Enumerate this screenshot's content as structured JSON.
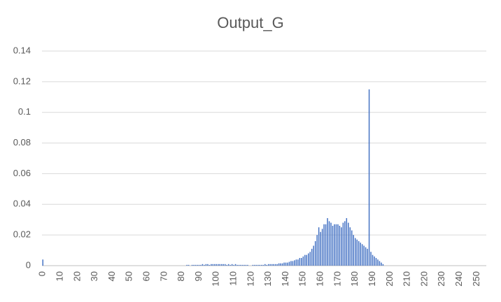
{
  "chart_data": {
    "type": "bar",
    "title": "Output_G",
    "categories": [
      "0",
      null,
      null,
      null,
      null,
      null,
      null,
      null,
      null,
      null,
      "10",
      null,
      null,
      null,
      null,
      null,
      null,
      null,
      null,
      null,
      "20",
      null,
      null,
      null,
      null,
      null,
      null,
      null,
      null,
      null,
      "30",
      null,
      null,
      null,
      null,
      null,
      null,
      null,
      null,
      null,
      "40",
      null,
      null,
      null,
      null,
      null,
      null,
      null,
      null,
      null,
      "50",
      null,
      null,
      null,
      null,
      null,
      null,
      null,
      null,
      null,
      "60",
      null,
      null,
      null,
      null,
      null,
      null,
      null,
      null,
      null,
      "70",
      null,
      null,
      null,
      null,
      null,
      null,
      null,
      null,
      null,
      "80",
      null,
      null,
      null,
      null,
      null,
      null,
      null,
      null,
      null,
      "90",
      null,
      null,
      null,
      null,
      null,
      null,
      null,
      null,
      null,
      "100",
      null,
      null,
      null,
      null,
      null,
      null,
      null,
      null,
      null,
      "110",
      null,
      null,
      null,
      null,
      null,
      null,
      null,
      null,
      null,
      "120",
      null,
      null,
      null,
      null,
      null,
      null,
      null,
      null,
      null,
      "130",
      null,
      null,
      null,
      null,
      null,
      null,
      null,
      null,
      null,
      "140",
      null,
      null,
      null,
      null,
      null,
      null,
      null,
      null,
      null,
      "150",
      null,
      null,
      null,
      null,
      null,
      null,
      null,
      null,
      null,
      "160",
      null,
      null,
      null,
      null,
      null,
      null,
      null,
      null,
      null,
      "170",
      null,
      null,
      null,
      null,
      null,
      null,
      null,
      null,
      null,
      "180",
      null,
      null,
      null,
      null,
      null,
      null,
      null,
      null,
      null,
      "190",
      null,
      null,
      null,
      null,
      null,
      null,
      null,
      null,
      null,
      "200",
      null,
      null,
      null,
      null,
      null,
      null,
      null,
      null,
      null,
      "210",
      null,
      null,
      null,
      null,
      null,
      null,
      null,
      null,
      null,
      "220",
      null,
      null,
      null,
      null,
      null,
      null,
      null,
      null,
      null,
      "230",
      null,
      null,
      null,
      null,
      null,
      null,
      null,
      null,
      null,
      "240",
      null,
      null,
      null,
      null,
      null,
      null,
      null,
      null,
      null,
      "250",
      null,
      null,
      null,
      null,
      null
    ],
    "values": [
      0.004,
      0,
      0,
      0,
      0,
      0,
      0,
      0,
      0,
      0,
      0,
      0,
      0,
      0,
      0,
      0,
      0,
      0,
      0,
      0,
      0,
      0,
      0,
      0,
      0,
      0,
      0,
      0,
      0,
      0,
      0,
      0,
      0,
      0,
      0,
      0,
      0,
      0,
      0,
      0,
      0,
      0,
      0,
      0,
      0,
      0,
      0,
      0,
      0,
      0,
      0,
      0,
      0,
      0,
      0,
      0,
      0,
      0,
      0,
      0,
      0,
      0,
      0,
      0,
      0,
      0,
      0,
      0,
      0,
      0,
      0,
      0,
      0,
      0,
      0,
      0,
      0,
      0,
      0,
      0,
      0,
      0,
      0,
      0.0005,
      0.0005,
      0,
      0.0005,
      0.0005,
      0.0005,
      0.0005,
      0.0005,
      0.0005,
      0.001,
      0.0005,
      0.001,
      0.001,
      0.0005,
      0.001,
      0.001,
      0.001,
      0.001,
      0.001,
      0.001,
      0.001,
      0.001,
      0.001,
      0.0005,
      0.001,
      0.0005,
      0.001,
      0.0005,
      0.001,
      0.0005,
      0.0005,
      0.0005,
      0.0005,
      0.0005,
      0.0005,
      0.0005,
      0,
      0,
      0.0005,
      0.0005,
      0.0005,
      0.0005,
      0.0005,
      0.0005,
      0.0005,
      0.001,
      0.0005,
      0.001,
      0.001,
      0.001,
      0.001,
      0.001,
      0.001,
      0.0015,
      0.0015,
      0.0015,
      0.002,
      0.002,
      0.002,
      0.0025,
      0.003,
      0.003,
      0.0035,
      0.004,
      0.004,
      0.005,
      0.005,
      0.006,
      0.007,
      0.007,
      0.008,
      0.009,
      0.011,
      0.013,
      0.016,
      0.02,
      0.025,
      0.022,
      0.024,
      0.027,
      0.027,
      0.031,
      0.029,
      0.028,
      0.026,
      0.027,
      0.027,
      0.027,
      0.026,
      0.025,
      0.028,
      0.029,
      0.031,
      0.028,
      0.025,
      0.023,
      0.02,
      0.018,
      0.017,
      0.016,
      0.015,
      0.014,
      0.013,
      0.012,
      0.011,
      0.115,
      0.009,
      0.007,
      0.006,
      0.005,
      0.004,
      0.003,
      0.002,
      0.001,
      0,
      0,
      0,
      0,
      0,
      0,
      0,
      0,
      0,
      0,
      0,
      0,
      0,
      0,
      0,
      0,
      0,
      0,
      0,
      0,
      0,
      0,
      0,
      0,
      0,
      0,
      0,
      0,
      0,
      0,
      0,
      0,
      0,
      0,
      0,
      0,
      0,
      0,
      0,
      0,
      0,
      0,
      0,
      0,
      0,
      0,
      0,
      0,
      0,
      0,
      0,
      0,
      0,
      0,
      0,
      0,
      0,
      0,
      0
    ],
    "color": "#4472c4",
    "ylim": [
      0,
      0.14
    ],
    "yticks": [
      0,
      0.02,
      0.04,
      0.06,
      0.08,
      0.1,
      0.12,
      0.14
    ],
    "grid": true
  }
}
